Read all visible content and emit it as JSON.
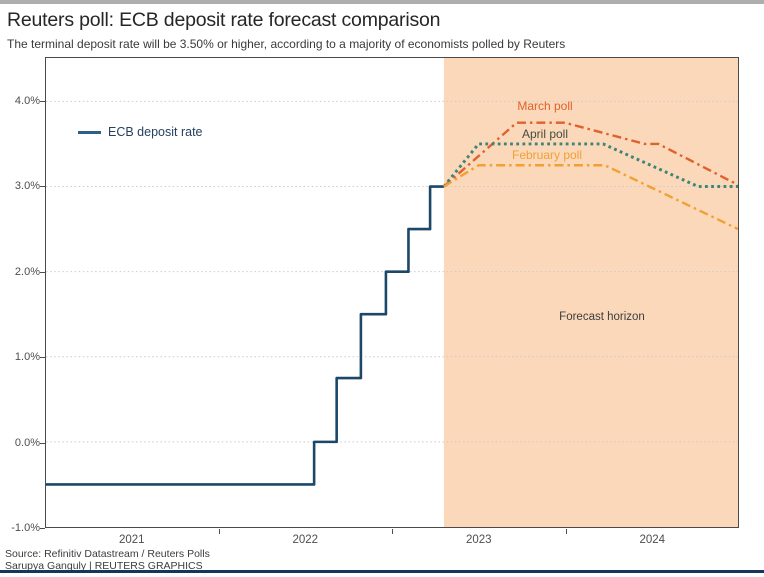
{
  "footer": {
    "source": "Source: Refinitiv Datastream / Reuters Polls",
    "credit": "Sarupya Ganguly | REUTERS GRAPHICS"
  },
  "colors": {
    "ecb_line": "#1b4769",
    "march_poll": "#e0612b",
    "april_poll": "#3d8577",
    "february_poll": "#f0a132",
    "forecast_bg": "#fbd8ba",
    "gridline": "#cbcbcb",
    "legend_swatch": "#2e5f86",
    "bottom_bar": "#16365c"
  },
  "chart_data": {
    "type": "line",
    "title": "Reuters poll: ECB deposit rate forecast comparison",
    "subtitle": "The terminal deposit rate will be 3.50% or higher, according to a majority of economists polled by Reuters",
    "x_axis": {
      "labels": [
        "2021",
        "2022",
        "2023",
        "2024"
      ],
      "range": [
        2021,
        2025
      ],
      "grid": false
    },
    "y_axis": {
      "unit": "%",
      "labels": [
        "4.0%",
        "3.0%",
        "2.0%",
        "1.0%",
        "0.0%",
        "-1.0%"
      ],
      "values": [
        4,
        3,
        2,
        1,
        0,
        -1
      ],
      "range": [
        -1,
        4.51
      ],
      "grid": "dotted"
    },
    "forecast_region": {
      "start": 2023.3,
      "end": 2025.0,
      "label": "Forecast horizon"
    },
    "legend_position": "upper-left-inside",
    "series": [
      {
        "name": "ECB deposit rate",
        "style": "solid",
        "color": "#1b4769",
        "points": [
          [
            2021.0,
            -0.5
          ],
          [
            2022.55,
            -0.5
          ],
          [
            2022.55,
            0.0
          ],
          [
            2022.68,
            0.0
          ],
          [
            2022.68,
            0.75
          ],
          [
            2022.82,
            0.75
          ],
          [
            2022.82,
            1.5
          ],
          [
            2022.965,
            1.5
          ],
          [
            2022.965,
            2.0
          ],
          [
            2023.095,
            2.0
          ],
          [
            2023.095,
            2.5
          ],
          [
            2023.22,
            2.5
          ],
          [
            2023.22,
            3.0
          ],
          [
            2023.3,
            3.0
          ]
        ]
      },
      {
        "name": "March poll",
        "style": "dashdot",
        "color": "#e0612b",
        "label_color": "#e0612b",
        "points": [
          [
            2023.3,
            3.0
          ],
          [
            2023.72,
            3.75
          ],
          [
            2024.0,
            3.75
          ],
          [
            2024.46,
            3.5
          ],
          [
            2024.54,
            3.5
          ],
          [
            2025.0,
            3.02
          ]
        ]
      },
      {
        "name": "April poll",
        "style": "dotted",
        "color": "#3d8577",
        "label_color": "#454d40",
        "points": [
          [
            2023.3,
            3.0
          ],
          [
            2023.5,
            3.5
          ],
          [
            2024.22,
            3.5
          ],
          [
            2024.77,
            3.0
          ],
          [
            2025.0,
            3.0
          ]
        ]
      },
      {
        "name": "February poll",
        "style": "dashdot",
        "color": "#f0a132",
        "label_color": "#f0a132",
        "points": [
          [
            2023.3,
            3.0
          ],
          [
            2023.5,
            3.25
          ],
          [
            2024.23,
            3.25
          ],
          [
            2025.0,
            2.5
          ]
        ]
      }
    ]
  }
}
